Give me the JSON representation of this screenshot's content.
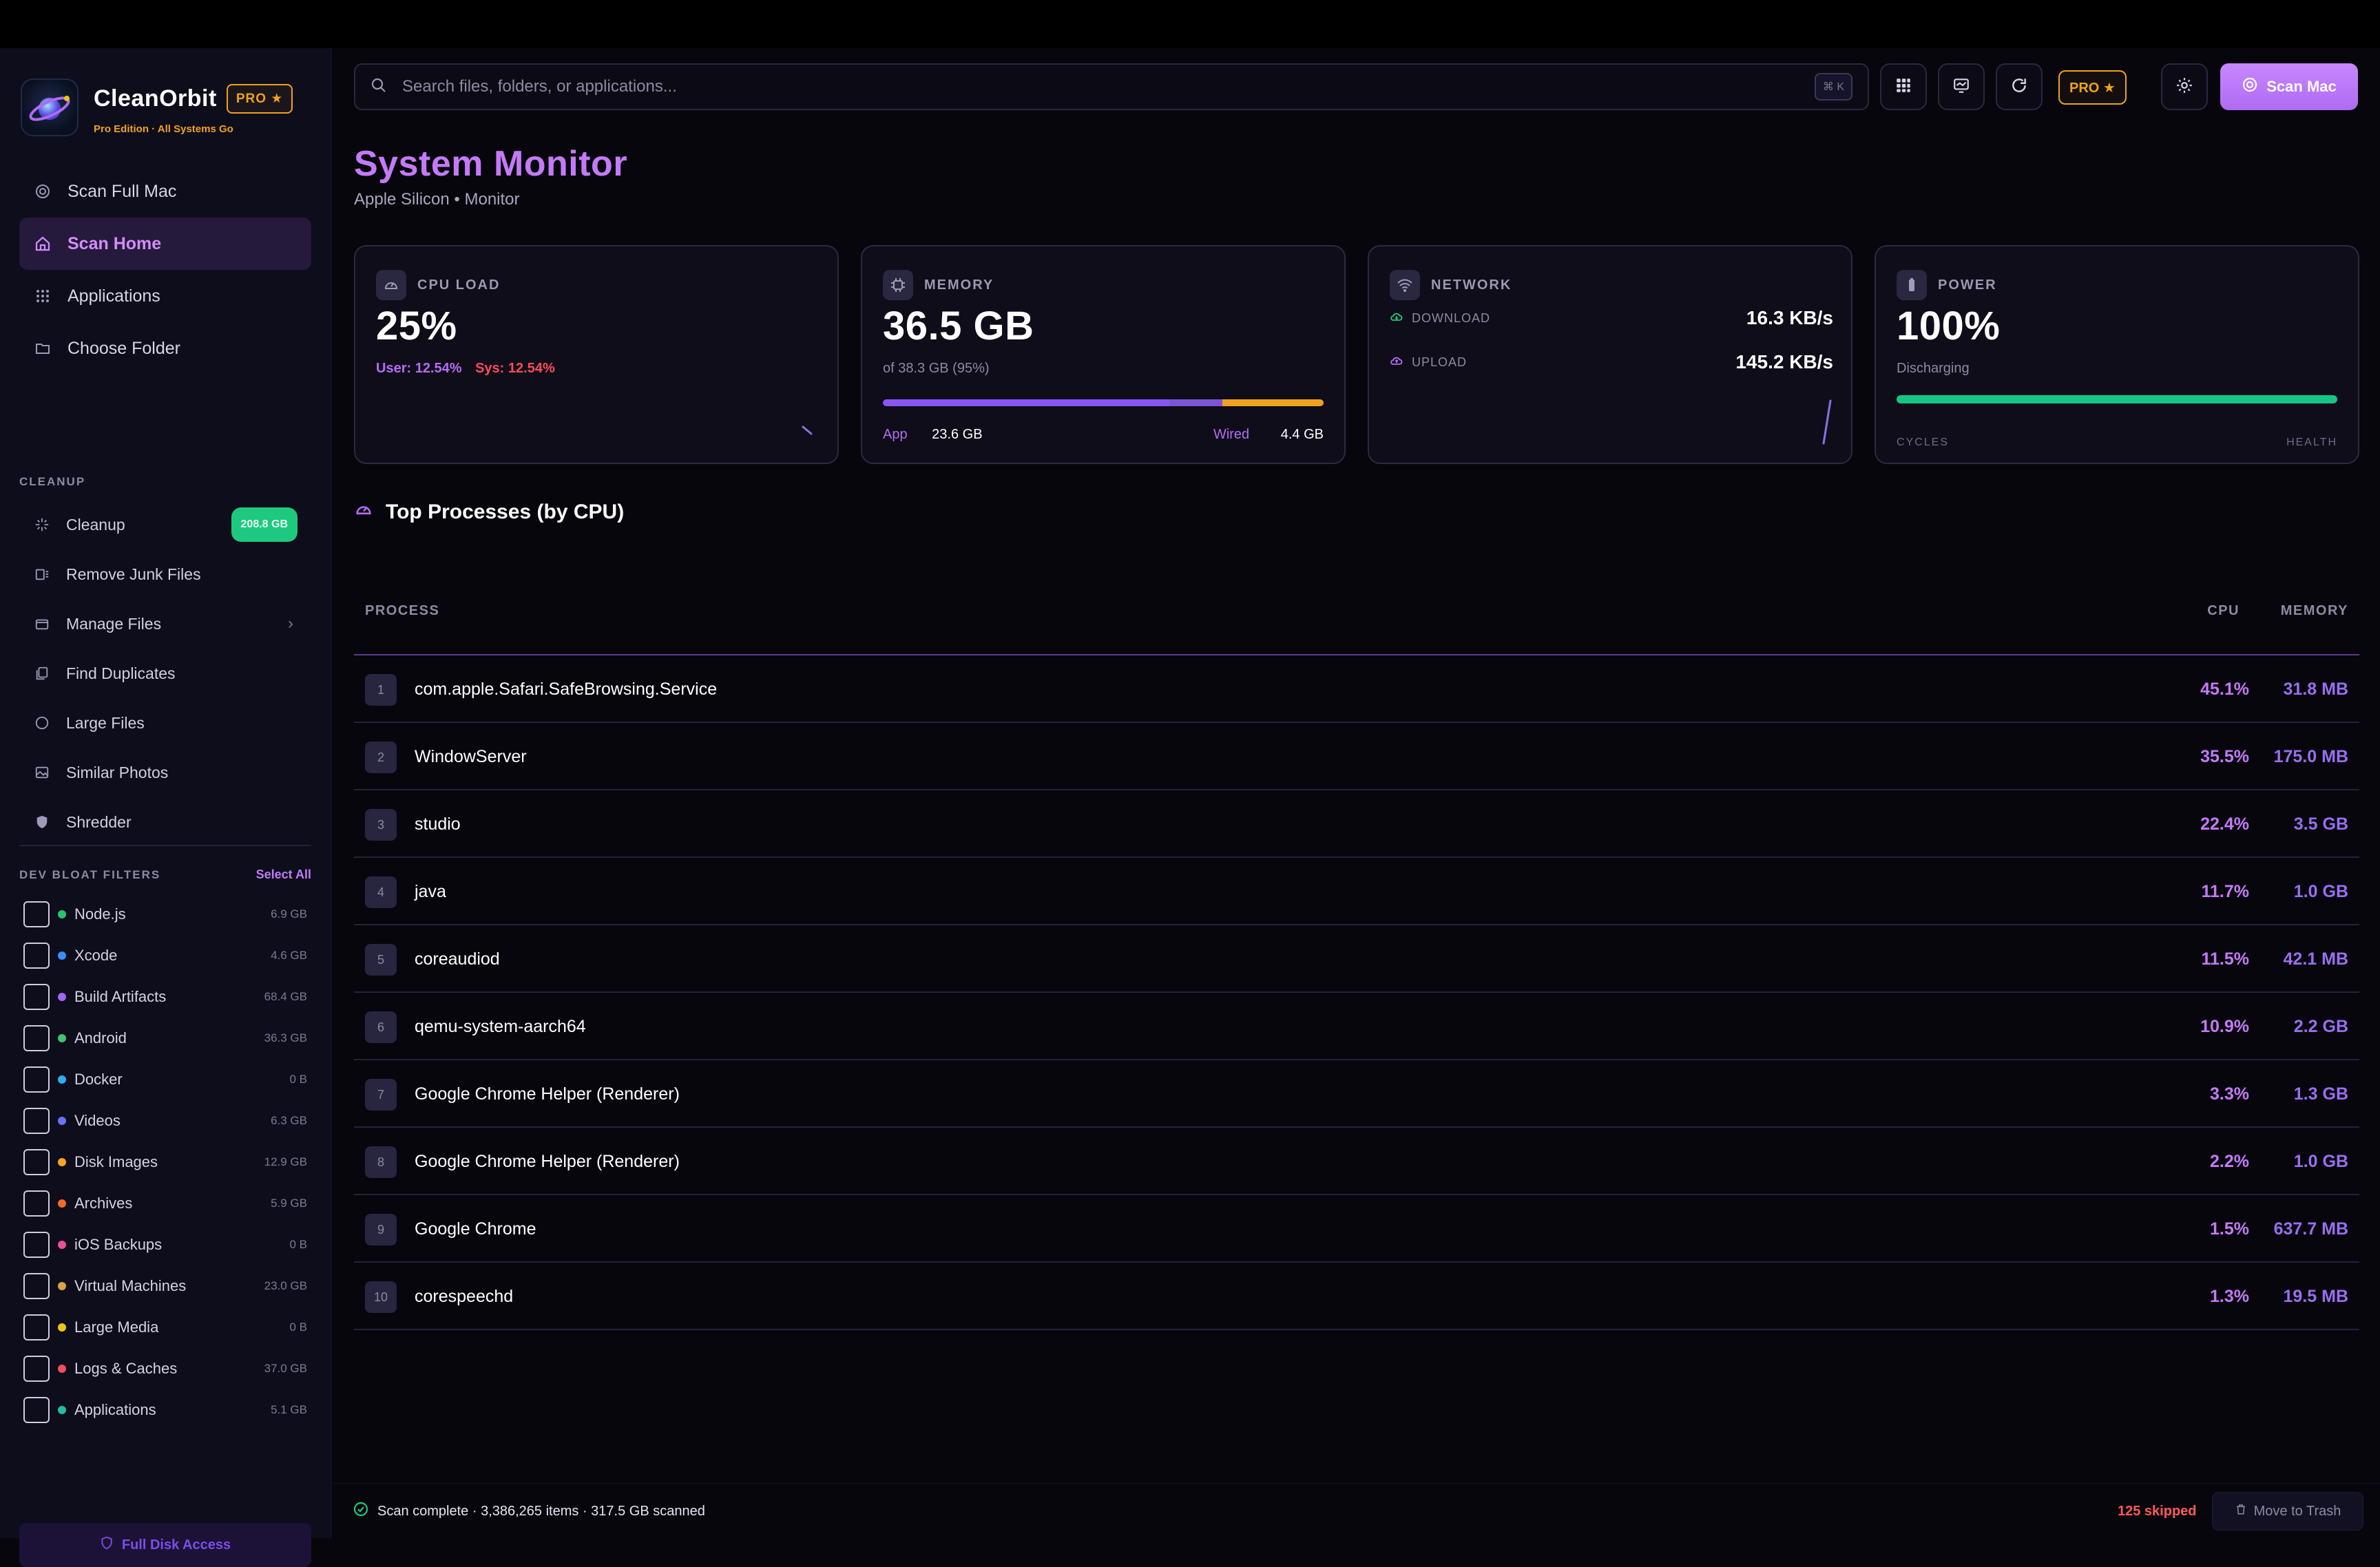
{
  "brand": {
    "name": "CleanOrbit",
    "badge": "PRO ★",
    "subtitle": "Pro Edition · All Systems Go"
  },
  "nav": [
    {
      "label": "Scan Full Mac",
      "icon": "target-icon"
    },
    {
      "label": "Scan Home",
      "icon": "home-icon",
      "active": true
    },
    {
      "label": "Applications",
      "icon": "grid-icon"
    },
    {
      "label": "Choose Folder",
      "icon": "folder-icon"
    }
  ],
  "cleanup": {
    "section_label": "CLEANUP",
    "items": [
      {
        "label": "Cleanup",
        "badge": "208.8 GB",
        "icon": "sparkle-icon"
      },
      {
        "label": "Remove Junk Files",
        "icon": "junk-icon"
      },
      {
        "label": "Manage Files",
        "icon": "files-icon",
        "has_chevron": true
      },
      {
        "label": "Find Duplicates",
        "icon": "duplicate-icon"
      },
      {
        "label": "Large Files",
        "icon": "circle-icon"
      },
      {
        "label": "Similar Photos",
        "icon": "photo-icon"
      },
      {
        "label": "Shredder",
        "icon": "shield-icon"
      }
    ]
  },
  "dev_filters": {
    "section_label": "DEV BLOAT FILTERS",
    "select_all": "Select All",
    "items": [
      {
        "label": "Node.js",
        "size": "6.9 GB",
        "color": "#27c46f"
      },
      {
        "label": "Xcode",
        "size": "4.6 GB",
        "color": "#3a8cff"
      },
      {
        "label": "Build Artifacts",
        "size": "68.4 GB",
        "color": "#a067f2"
      },
      {
        "label": "Android",
        "size": "36.3 GB",
        "color": "#3fc46f"
      },
      {
        "label": "Docker",
        "size": "0 B",
        "color": "#2ab0e8"
      },
      {
        "label": "Videos",
        "size": "6.3 GB",
        "color": "#6a72f5"
      },
      {
        "label": "Disk Images",
        "size": "12.9 GB",
        "color": "#f2a623"
      },
      {
        "label": "Archives",
        "size": "5.9 GB",
        "color": "#f26a2a"
      },
      {
        "label": "iOS Backups",
        "size": "0 B",
        "color": "#e8509a"
      },
      {
        "label": "Virtual Machines",
        "size": "23.0 GB",
        "color": "#d9a34a"
      },
      {
        "label": "Large Media",
        "size": "0 B",
        "color": "#f0c419"
      },
      {
        "label": "Logs & Caches",
        "size": "37.0 GB",
        "color": "#ef4e5c"
      },
      {
        "label": "Applications",
        "size": "5.1 GB",
        "color": "#1fbfa2"
      }
    ]
  },
  "full_disk_access": "Full Disk Access",
  "toolbar": {
    "search_placeholder": "Search files, folders, or applications...",
    "shortcut": "⌘ K",
    "pro_badge": "PRO ★",
    "scan_button": "Scan Mac"
  },
  "page": {
    "title": "System Monitor",
    "subtitle": "Apple Silicon • Monitor"
  },
  "cards": {
    "cpu": {
      "label": "CPU LOAD",
      "value": "25%",
      "user": "User: 12.54%",
      "sys": "Sys: 12.54%"
    },
    "memory": {
      "label": "MEMORY",
      "value": "36.5 GB",
      "sub": "of 38.3 GB (95%)",
      "app_label": "App",
      "app_value": "23.6 GB",
      "wired_label": "Wired",
      "wired_value": "4.4 GB",
      "app_fraction": 0.65,
      "wired_fraction": 0.12,
      "compressed_fraction": 0.23
    },
    "network": {
      "label": "NETWORK",
      "download_label": "DOWNLOAD",
      "download_value": "16.3 KB/s",
      "upload_label": "UPLOAD",
      "upload_value": "145.2 KB/s"
    },
    "power": {
      "label": "POWER",
      "value": "100%",
      "sub": "Discharging",
      "level": 1.0,
      "foot_left": "CYCLES",
      "foot_right": "HEALTH"
    }
  },
  "processes": {
    "title": "Top Processes (by CPU)",
    "headers": {
      "process": "PROCESS",
      "cpu": "CPU",
      "memory": "MEMORY"
    },
    "rows": [
      {
        "rank": "1",
        "name": "com.apple.Safari.SafeBrowsing.Service",
        "cpu": "45.1%",
        "memory": "31.8 MB"
      },
      {
        "rank": "2",
        "name": "WindowServer",
        "cpu": "35.5%",
        "memory": "175.0 MB"
      },
      {
        "rank": "3",
        "name": "studio",
        "cpu": "22.4%",
        "memory": "3.5 GB"
      },
      {
        "rank": "4",
        "name": "java",
        "cpu": "11.7%",
        "memory": "1.0 GB"
      },
      {
        "rank": "5",
        "name": "coreaudiod",
        "cpu": "11.5%",
        "memory": "42.1 MB"
      },
      {
        "rank": "6",
        "name": "qemu-system-aarch64",
        "cpu": "10.9%",
        "memory": "2.2 GB"
      },
      {
        "rank": "7",
        "name": "Google Chrome Helper (Renderer)",
        "cpu": "3.3%",
        "memory": "1.3 GB"
      },
      {
        "rank": "8",
        "name": "Google Chrome Helper (Renderer)",
        "cpu": "2.2%",
        "memory": "1.0 GB"
      },
      {
        "rank": "9",
        "name": "Google Chrome",
        "cpu": "1.5%",
        "memory": "637.7 MB"
      },
      {
        "rank": "10",
        "name": "corespeechd",
        "cpu": "1.3%",
        "memory": "19.5 MB"
      }
    ]
  },
  "status": {
    "text": "Scan complete · 3,386,265 items · 317.5 GB scanned",
    "skipped": "125 skipped",
    "trash": "Move to Trash"
  }
}
